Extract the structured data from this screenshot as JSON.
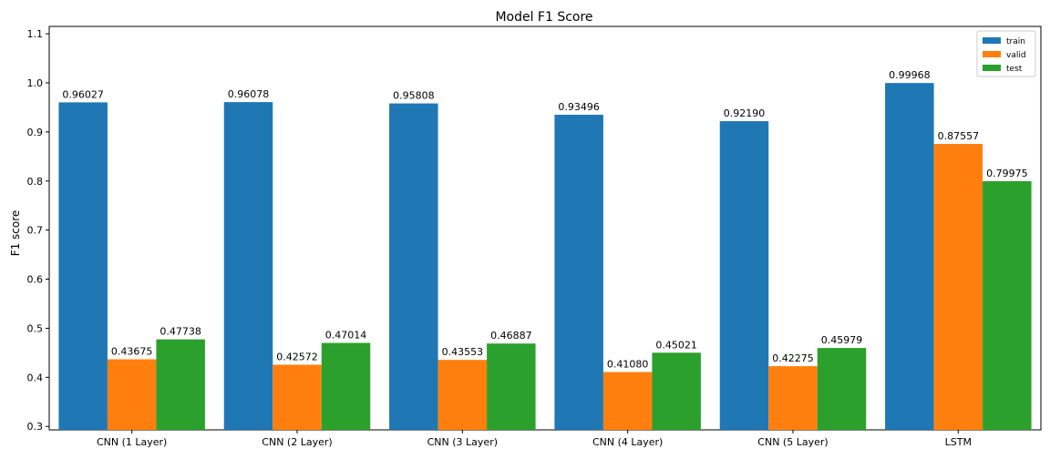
{
  "chart_data": {
    "type": "bar",
    "title": "Model F1 Score",
    "xlabel": "",
    "ylabel": "F1 score",
    "ylim": [
      0.293,
      1.115
    ],
    "yticks": [
      "0.3",
      "0.4",
      "0.5",
      "0.6",
      "0.7",
      "0.8",
      "0.9",
      "1.0",
      "1.1"
    ],
    "categories": [
      "CNN (1 Layer)",
      "CNN (2 Layer)",
      "CNN (3 Layer)",
      "CNN (4 Layer)",
      "CNN (5 Layer)",
      "LSTM"
    ],
    "series": [
      {
        "name": "train",
        "color": "#1f77b4",
        "values": [
          0.96027,
          0.96078,
          0.95808,
          0.93496,
          0.9219,
          0.99968
        ],
        "labels": [
          "0.96027",
          "0.96078",
          "0.95808",
          "0.93496",
          "0.92190",
          "0.99968"
        ]
      },
      {
        "name": "valid",
        "color": "#ff7f0e",
        "values": [
          0.43675,
          0.42572,
          0.43553,
          0.4108,
          0.42275,
          0.87557
        ],
        "labels": [
          "0.43675",
          "0.42572",
          "0.43553",
          "0.41080",
          "0.42275",
          "0.87557"
        ]
      },
      {
        "name": "test",
        "color": "#2ca02c",
        "values": [
          0.47738,
          0.47014,
          0.46887,
          0.45021,
          0.45979,
          0.79975
        ],
        "labels": [
          "0.47738",
          "0.47014",
          "0.46887",
          "0.45021",
          "0.45979",
          "0.79975"
        ]
      }
    ],
    "legend": "top-right",
    "grid": false
  }
}
